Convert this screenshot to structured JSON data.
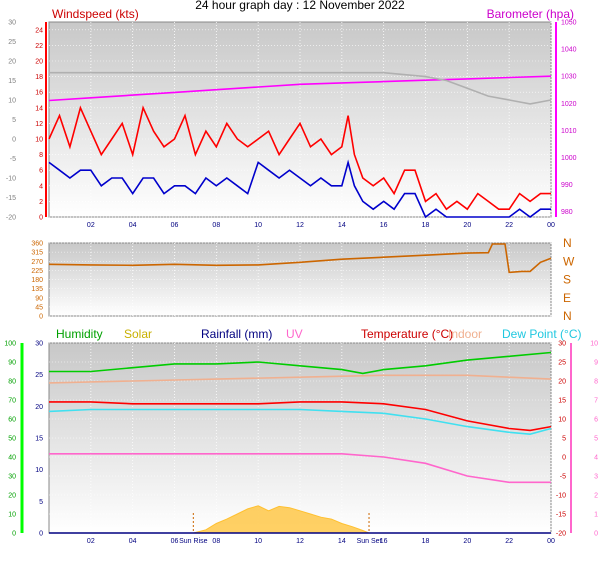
{
  "title": "24 hour graph day : 12 November 2022",
  "x_ticks": [
    "02",
    "04",
    "06",
    "08",
    "10",
    "12",
    "14",
    "16",
    "18",
    "20",
    "22",
    "00"
  ],
  "chart_data": [
    {
      "type": "line",
      "name": "wind-baro",
      "x_range_hours": [
        0,
        24
      ],
      "left_axis": {
        "label": "Windspeed (kts)",
        "ylim": [
          0,
          25
        ],
        "ticks": [
          0,
          2,
          4,
          6,
          8,
          10,
          12,
          14,
          16,
          18,
          20,
          22,
          24
        ]
      },
      "outer_left_axis": {
        "ylim": [
          -20,
          30
        ],
        "ticks": [
          -20,
          -15,
          -10,
          -5,
          0,
          5,
          10,
          15,
          20,
          25,
          30
        ]
      },
      "right_axis": {
        "label": "Barometer (hpa)",
        "ylim": [
          978,
          1050
        ],
        "ticks": [
          980,
          990,
          1000,
          1010,
          1020,
          1030,
          1040,
          1050
        ]
      },
      "series": [
        {
          "label": "Windspeed (kts) gust",
          "color": "#ff0000",
          "axis": "left",
          "x": [
            0,
            0.5,
            1,
            1.5,
            2,
            2.5,
            3,
            3.5,
            4,
            4.5,
            5,
            5.5,
            6,
            6.5,
            7,
            7.5,
            8,
            8.5,
            9,
            9.5,
            10,
            10.5,
            11,
            11.5,
            12,
            12.5,
            13,
            13.5,
            14,
            14.3,
            14.6,
            15,
            15.5,
            16,
            16.5,
            17,
            17.5,
            18,
            18.5,
            19,
            19.5,
            20,
            20.5,
            21,
            21.5,
            22,
            22.5,
            23,
            23.5,
            24
          ],
          "y": [
            10,
            13,
            9,
            14,
            11,
            8,
            10,
            12,
            8,
            14,
            11,
            9,
            10,
            13,
            8,
            11,
            9,
            12,
            10,
            9,
            10,
            11,
            8,
            10,
            12,
            9,
            10,
            8,
            9,
            13,
            8,
            5,
            4,
            5,
            3,
            6,
            6,
            2,
            3,
            1,
            2,
            1,
            3,
            2,
            1,
            1,
            3,
            2,
            3,
            3
          ]
        },
        {
          "label": "Windspeed (kts) average",
          "color": "#0000cc",
          "axis": "left",
          "x": [
            0,
            0.5,
            1,
            1.5,
            2,
            2.5,
            3,
            3.5,
            4,
            4.5,
            5,
            5.5,
            6,
            6.5,
            7,
            7.5,
            8,
            8.5,
            9,
            9.5,
            10,
            10.5,
            11,
            11.5,
            12,
            12.5,
            13,
            13.5,
            14,
            14.3,
            14.6,
            15,
            15.5,
            16,
            16.5,
            17,
            17.5,
            18,
            18.5,
            19,
            19.5,
            20,
            20.5,
            21,
            21.5,
            22,
            22.5,
            23,
            23.5,
            24
          ],
          "y": [
            7,
            6,
            5,
            6,
            6,
            4,
            5,
            5,
            3,
            5,
            5,
            3,
            4,
            4,
            3,
            5,
            4,
            5,
            4,
            3,
            7,
            6,
            5,
            6,
            5,
            4,
            5,
            4,
            4,
            7,
            4,
            2,
            1,
            2,
            1,
            3,
            3,
            0,
            1,
            0,
            0,
            0,
            0,
            0,
            0,
            0,
            1,
            0,
            1,
            1
          ]
        },
        {
          "label": "Barometer (hpa)",
          "color": "#ff00ff",
          "axis": "right",
          "x": [
            0,
            2,
            4,
            6,
            8,
            10,
            12,
            14,
            16,
            18,
            20,
            22,
            24
          ],
          "y": [
            1021,
            1022,
            1023,
            1024,
            1025,
            1026,
            1027,
            1027.5,
            1028,
            1028.5,
            1029,
            1029.5,
            1030
          ]
        },
        {
          "label": "Barometer outer trace",
          "color": "#b0b0b0",
          "axis": "outer_left",
          "x": [
            0,
            2,
            4,
            6,
            8,
            10,
            12,
            14,
            16,
            18,
            19,
            20,
            21,
            22,
            23,
            24
          ],
          "y": [
            17,
            17,
            17,
            17,
            17,
            17,
            17,
            17,
            17,
            16,
            15,
            13,
            11,
            10,
            9,
            10
          ]
        }
      ]
    },
    {
      "type": "line",
      "name": "wind-direction",
      "x_range_hours": [
        0,
        24
      ],
      "left_axis": {
        "ylim": [
          0,
          360
        ],
        "ticks": [
          0,
          45,
          90,
          135,
          180,
          225,
          270,
          315,
          360
        ]
      },
      "right_axis": {
        "ticks": [
          "N",
          "W",
          "S",
          "E",
          "N"
        ]
      },
      "series": [
        {
          "label": "Wind direction",
          "color": "#cc6600",
          "x": [
            0,
            2,
            4,
            6,
            8,
            10,
            12,
            14,
            16,
            18,
            20,
            21,
            21.2,
            21.8,
            22,
            22.6,
            23,
            23.5,
            24
          ],
          "y": [
            255,
            252,
            250,
            255,
            250,
            252,
            265,
            280,
            290,
            300,
            310,
            312,
            355,
            355,
            215,
            220,
            220,
            265,
            285
          ]
        }
      ]
    },
    {
      "type": "line",
      "name": "temp-humidity",
      "x_range_hours": [
        0,
        24
      ],
      "outer_left_axis": {
        "ylim": [
          0,
          100
        ],
        "ticks": [
          0,
          10,
          20,
          30,
          40,
          50,
          60,
          70,
          80,
          90,
          100
        ]
      },
      "left_axis": {
        "ylim": [
          0,
          30
        ],
        "ticks": [
          0,
          5,
          10,
          15,
          20,
          25,
          30
        ]
      },
      "right_axis": {
        "ylim": [
          -20,
          30
        ],
        "ticks": [
          -20,
          -15,
          -10,
          -5,
          0,
          5,
          10,
          15,
          20,
          25,
          30
        ]
      },
      "outer_right_axis": {
        "ylim": [
          0,
          10
        ],
        "ticks": [
          0,
          1,
          2,
          3,
          4,
          5,
          6,
          7,
          8,
          9,
          10
        ]
      },
      "legend": [
        "Humidity",
        "Solar",
        "Rainfall (mm)",
        "UV",
        "Temperature (°C)",
        "Indoor",
        "Dew Point (°C)"
      ],
      "annotations": [
        "Sun Rise",
        "Sun Set"
      ],
      "series": [
        {
          "label": "Humidity",
          "color": "#00cc00",
          "axis": "outer_left",
          "x": [
            0,
            2,
            4,
            6,
            8,
            10,
            12,
            14,
            15,
            16,
            18,
            20,
            22,
            24
          ],
          "y": [
            85,
            85,
            87,
            89,
            89,
            90,
            88,
            86,
            84,
            86,
            88,
            91,
            93,
            95
          ]
        },
        {
          "label": "Indoor",
          "color": "#f0b090",
          "axis": "right",
          "x": [
            0,
            4,
            8,
            12,
            16,
            20,
            22,
            24
          ],
          "y": [
            19.5,
            20,
            20.5,
            21,
            21.5,
            21.5,
            21,
            20.5
          ]
        },
        {
          "label": "Temperature (°C)",
          "color": "#ff0000",
          "axis": "right",
          "x": [
            0,
            2,
            4,
            6,
            8,
            10,
            12,
            14,
            16,
            18,
            20,
            22,
            23,
            24
          ],
          "y": [
            14.5,
            14.5,
            14,
            14,
            14,
            14,
            14.5,
            14.5,
            14,
            12.5,
            9.5,
            7.5,
            7,
            8
          ]
        },
        {
          "label": "Dew Point (°C)",
          "color": "#40e0f0",
          "axis": "right",
          "x": [
            0,
            2,
            4,
            6,
            8,
            10,
            12,
            14,
            16,
            18,
            20,
            22,
            23,
            24
          ],
          "y": [
            12,
            12.5,
            12.5,
            12.5,
            12.5,
            12.5,
            12.5,
            12,
            11.5,
            10,
            8,
            6.5,
            6,
            7.5
          ]
        },
        {
          "label": "UV",
          "color": "#ff66cc",
          "axis": "left",
          "x": [
            0,
            2,
            4,
            6,
            8,
            10,
            12,
            14,
            16,
            18,
            20,
            22,
            24
          ],
          "y": [
            12.5,
            12.5,
            12.5,
            12.5,
            12.5,
            12.5,
            12.5,
            12.5,
            12,
            11,
            9,
            8,
            8
          ]
        },
        {
          "label": "Solar",
          "color": "#ffc030",
          "axis": "left",
          "fill": true,
          "x": [
            6.9,
            7.5,
            8,
            8.5,
            9,
            9.5,
            10,
            10.5,
            11,
            11.5,
            12,
            12.5,
            13,
            13.5,
            14,
            14.5,
            15,
            15.3
          ],
          "y": [
            0,
            0.5,
            1.5,
            2.2,
            3,
            3.8,
            4.3,
            3.5,
            4.2,
            4,
            3.5,
            3,
            2.5,
            2.2,
            1.5,
            1,
            0.4,
            0
          ]
        },
        {
          "label": "Rainfall (mm)",
          "color": "#000080",
          "axis": "left",
          "x": [
            0,
            24
          ],
          "y": [
            0,
            0
          ]
        }
      ]
    }
  ]
}
